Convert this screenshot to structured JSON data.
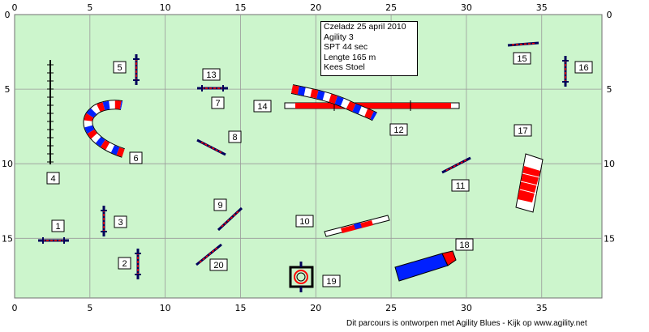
{
  "info": {
    "line1": "Czeladz 25 april 2010",
    "line2": "Agility 3",
    "line3": "SPT 44 sec",
    "line4": "Lengte 165 m",
    "line5": "Kees Stoel"
  },
  "axis": {
    "x_ticks": [
      "0",
      "5",
      "10",
      "15",
      "20",
      "25",
      "30",
      "35"
    ],
    "y_ticks": [
      "0",
      "5",
      "10",
      "15"
    ]
  },
  "numbers": [
    {
      "id": "1",
      "label": "1"
    },
    {
      "id": "2",
      "label": "2"
    },
    {
      "id": "3",
      "label": "3"
    },
    {
      "id": "4",
      "label": "4"
    },
    {
      "id": "5",
      "label": "5"
    },
    {
      "id": "6",
      "label": "6"
    },
    {
      "id": "7",
      "label": "7"
    },
    {
      "id": "8",
      "label": "8"
    },
    {
      "id": "9",
      "label": "9"
    },
    {
      "id": "10",
      "label": "10"
    },
    {
      "id": "11",
      "label": "11"
    },
    {
      "id": "12",
      "label": "12"
    },
    {
      "id": "13",
      "label": "13"
    },
    {
      "id": "14",
      "label": "14"
    },
    {
      "id": "15",
      "label": "15"
    },
    {
      "id": "16",
      "label": "16"
    },
    {
      "id": "17",
      "label": "17"
    },
    {
      "id": "18",
      "label": "18"
    },
    {
      "id": "19",
      "label": "19"
    },
    {
      "id": "20",
      "label": "20"
    }
  ],
  "footer": "Dit parcours is ontworpen met Agility Blues - Kijk op www.agility.net",
  "colors": {
    "field": "#ccf5cc",
    "grid": "#9a9a9a",
    "red": "#ff0000",
    "blue": "#0020ff",
    "post": "#00005a"
  }
}
